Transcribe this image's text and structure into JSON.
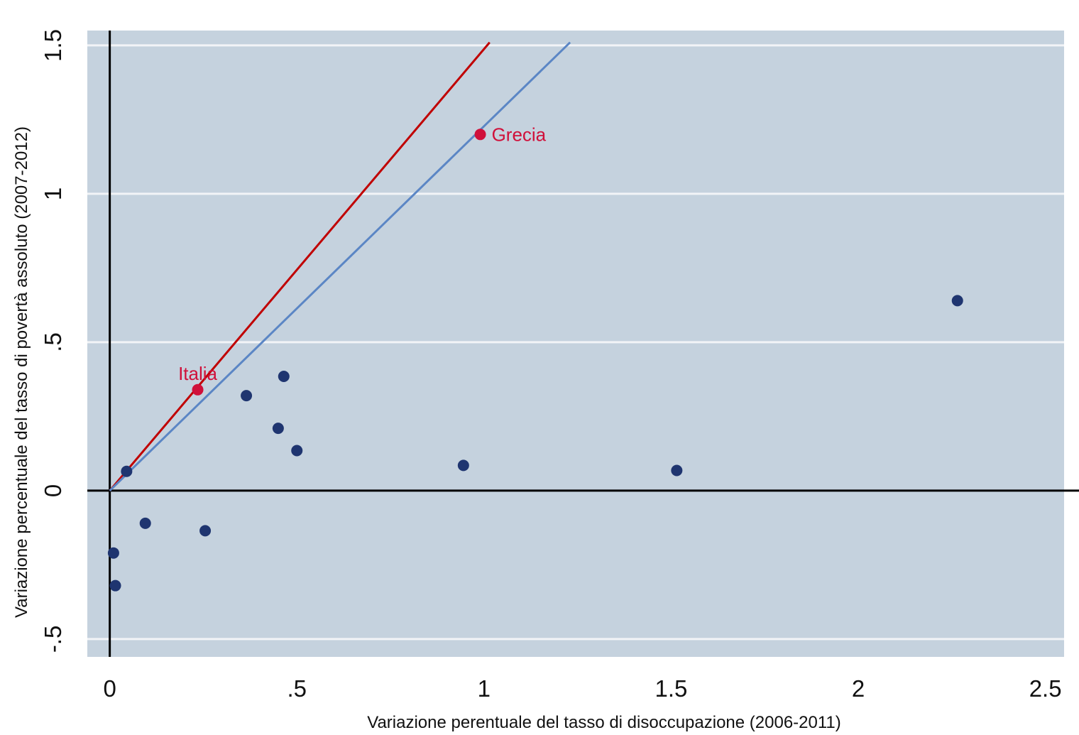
{
  "chart_data": {
    "type": "scatter",
    "xlabel": "Variazione perentuale del tasso di disoccupazione (2006-2011)",
    "ylabel": "Variazione percentuale del tasso di povertà assoluto (2007-2012)",
    "xlim": [
      -0.06,
      2.55
    ],
    "ylim": [
      -0.56,
      1.55
    ],
    "x_ticks": [
      {
        "value": 0,
        "label": "0"
      },
      {
        "value": 0.5,
        "label": ".5"
      },
      {
        "value": 1,
        "label": "1"
      },
      {
        "value": 1.5,
        "label": "1.5"
      },
      {
        "value": 2,
        "label": "2"
      },
      {
        "value": 2.5,
        "label": "2.5"
      }
    ],
    "y_ticks": [
      {
        "value": -0.5,
        "label": "-.5"
      },
      {
        "value": 0,
        "label": "0"
      },
      {
        "value": 0.5,
        "label": ".5"
      },
      {
        "value": 1,
        "label": "1"
      },
      {
        "value": 1.5,
        "label": "1.5"
      }
    ],
    "grid": true,
    "legend": "none",
    "colors": {
      "plot_background": "#c5d2de",
      "grid": "#f2f4f7",
      "points": "#1f3570",
      "highlight": "#d0103a",
      "red_line": "#c00000",
      "blue_line": "#5b86c5",
      "axis_lines": "#000000"
    },
    "points": [
      {
        "x": 0.01,
        "y": -0.21
      },
      {
        "x": 0.015,
        "y": -0.32
      },
      {
        "x": 0.045,
        "y": 0.065
      },
      {
        "x": 0.095,
        "y": -0.11
      },
      {
        "x": 0.255,
        "y": -0.135
      },
      {
        "x": 0.365,
        "y": 0.32
      },
      {
        "x": 0.45,
        "y": 0.21
      },
      {
        "x": 0.465,
        "y": 0.385
      },
      {
        "x": 0.5,
        "y": 0.135
      },
      {
        "x": 0.945,
        "y": 0.085
      },
      {
        "x": 1.515,
        "y": 0.068
      },
      {
        "x": 2.265,
        "y": 0.64
      }
    ],
    "labeled_points": [
      {
        "name": "Italia",
        "x": 0.235,
        "y": 0.34,
        "label_position": "above"
      },
      {
        "name": "Grecia",
        "x": 0.99,
        "y": 1.2,
        "label_position": "right"
      }
    ],
    "lines": [
      {
        "color_key": "red_line",
        "x": [
          0,
          1.015
        ],
        "y": [
          0,
          1.51
        ]
      },
      {
        "color_key": "blue_line",
        "x": [
          0,
          1.23
        ],
        "y": [
          0,
          1.51
        ]
      }
    ]
  }
}
